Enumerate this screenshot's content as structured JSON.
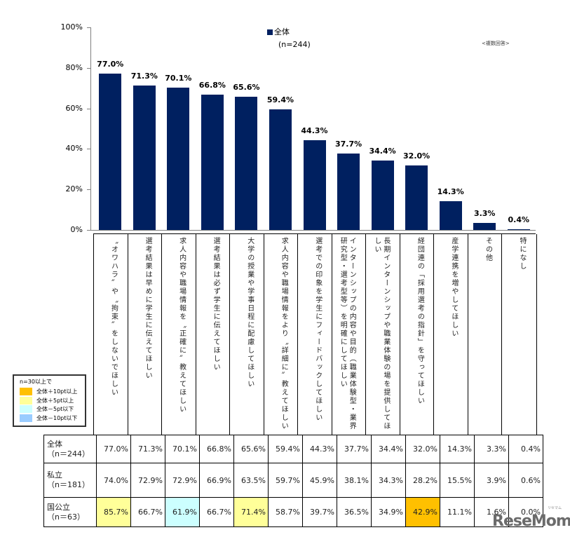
{
  "chart_data": {
    "type": "bar",
    "title": "",
    "xlabel": "",
    "ylabel": "",
    "ylim": [
      0,
      100
    ],
    "yticks": [
      "0%",
      "20%",
      "40%",
      "60%",
      "80%",
      "100%"
    ],
    "grid": false,
    "legend_position": "top-right",
    "note": "<複数回答>",
    "series": [
      {
        "name": "全体",
        "sub": "(n=244)",
        "color": "#002060",
        "values": [
          77.0,
          71.3,
          70.1,
          66.8,
          65.6,
          59.4,
          44.3,
          37.7,
          34.4,
          32.0,
          14.3,
          3.3,
          0.4
        ]
      }
    ],
    "categories": [
      "〝オワハラ〟や〝拘束〟をしないでほしい",
      "選考結果は早めに学生に伝えてほしい",
      "求人内容や職場情報を〝正確に〟教えてほしい",
      "選考結果は必ず学生に伝えてほしい",
      "大学の授業や学事日程に配慮してほしい",
      "求人内容や職場情報をより〝詳細に〟教えてほしい",
      "選考での印象を学生にフィードバックしてほしい",
      "インターンシップの内容や目的（職業体験型・業界研究型・選考型等）を明確にしてほしい",
      "長期インターンシップや職業体験の場を提供してほしい",
      "経団連の「採用選考の指針」を守ってほしい",
      "産学連携を増やしてほしい",
      "その他",
      "特になし"
    ],
    "bar_labels": [
      "77.0%",
      "71.3%",
      "70.1%",
      "66.8%",
      "65.6%",
      "59.4%",
      "44.3%",
      "37.7%",
      "34.4%",
      "32.0%",
      "14.3%",
      "3.3%",
      "0.4%"
    ],
    "table": {
      "rows": [
        {
          "label": "全体",
          "n": "（n＝244）",
          "values": [
            "77.0%",
            "71.3%",
            "70.1%",
            "66.8%",
            "65.6%",
            "59.4%",
            "44.3%",
            "37.7%",
            "34.4%",
            "32.0%",
            "14.3%",
            "3.3%",
            "0.4%"
          ],
          "highlights": [
            null,
            null,
            null,
            null,
            null,
            null,
            null,
            null,
            null,
            null,
            null,
            null,
            null
          ]
        },
        {
          "label": "私立",
          "n": "（n＝181）",
          "values": [
            "74.0%",
            "72.9%",
            "72.9%",
            "66.9%",
            "63.5%",
            "59.7%",
            "45.9%",
            "38.1%",
            "34.3%",
            "28.2%",
            "15.5%",
            "3.9%",
            "0.6%"
          ],
          "highlights": [
            null,
            null,
            null,
            null,
            null,
            null,
            null,
            null,
            null,
            null,
            null,
            null,
            null
          ]
        },
        {
          "label": "国公立",
          "n": "（n＝63）",
          "values": [
            "85.7%",
            "66.7%",
            "61.9%",
            "66.7%",
            "71.4%",
            "58.7%",
            "39.7%",
            "36.5%",
            "34.9%",
            "42.9%",
            "11.1%",
            "1.6%",
            "0.0%"
          ],
          "highlights": [
            "plus5",
            null,
            "minus5",
            null,
            "plus5",
            null,
            null,
            null,
            null,
            "plus10",
            null,
            null,
            null
          ]
        }
      ]
    },
    "highlight_legend": {
      "title": "n=30以上で",
      "items": [
        {
          "key": "plus10",
          "label": "全体＋10pt以上",
          "color": "#FFC000"
        },
        {
          "key": "plus5",
          "label": "全体＋5pt以上",
          "color": "#FFFF99"
        },
        {
          "key": "minus5",
          "label": "全体－5pt以下",
          "color": "#CCFFFF"
        },
        {
          "key": "minus10",
          "label": "全体－10pt以下",
          "color": "#99CCFF"
        }
      ]
    }
  },
  "watermark": {
    "text": "ReseMom",
    "small": "リセマム"
  }
}
